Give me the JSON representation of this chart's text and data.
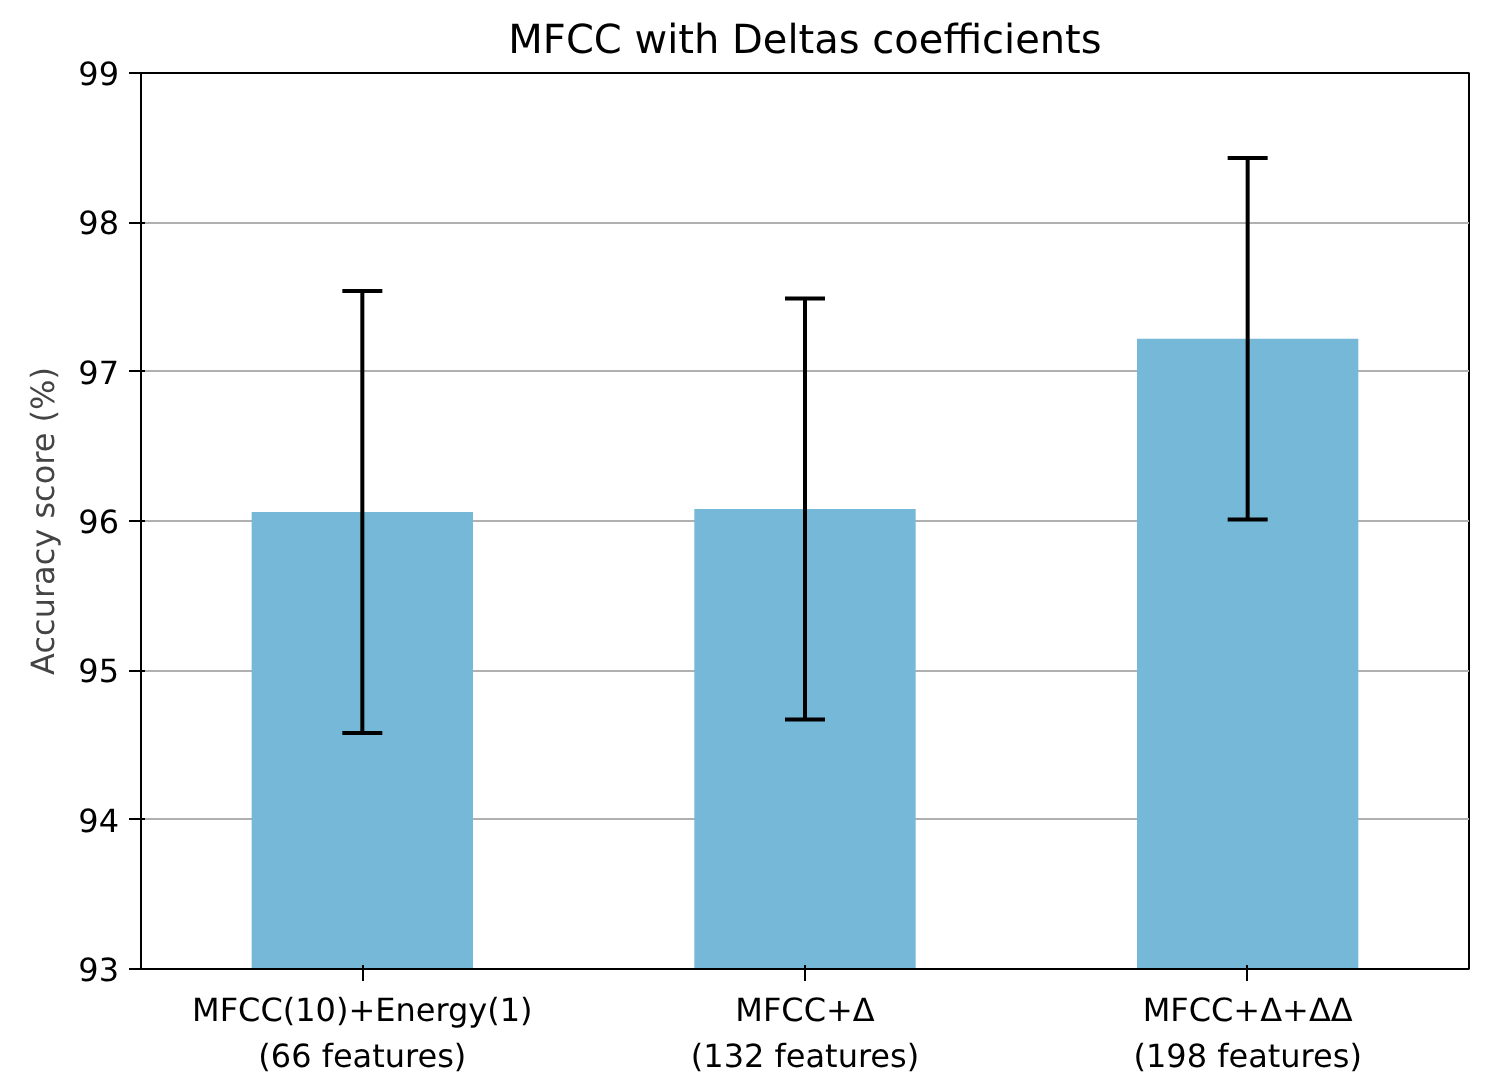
{
  "chart_data": {
    "type": "bar",
    "title": "MFCC with Deltas coefficients",
    "ylabel": "Accuracy score (%)",
    "categories": [
      "MFCC(10)+Energy(1)\n(66 features)",
      "MFCC+Δ\n(132 features)",
      "MFCC+Δ+ΔΔ\n(198 features)"
    ],
    "values": [
      96.06,
      96.08,
      97.22
    ],
    "errors": [
      1.48,
      1.41,
      1.21
    ],
    "color": "#75b8d8",
    "ylim": [
      93,
      99
    ],
    "yticks": [
      93,
      94,
      95,
      96,
      97,
      98,
      99
    ],
    "grid": "y"
  }
}
